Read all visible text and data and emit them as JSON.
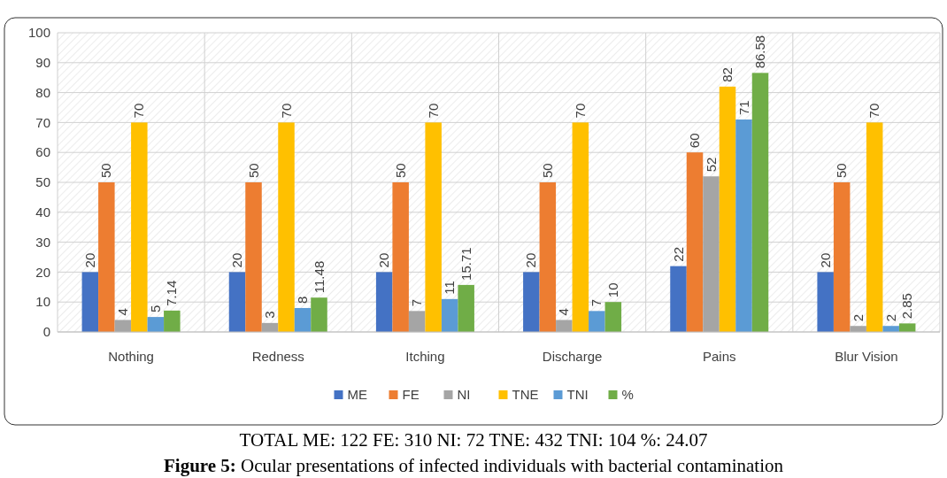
{
  "chart_data": {
    "type": "bar",
    "title": "Figure 5: Ocular presentations of infected individuals with bacterial contamination",
    "annotations": [
      "TOTAL ME: 122 FE: 310 NI: 72 TNE: 432 TNI: 104 %: 24.07"
    ],
    "categories": [
      "Nothing",
      "Redness",
      "Itching",
      "Discharge",
      "Pains",
      "Blur Vision"
    ],
    "series": [
      {
        "name": "ME",
        "color": "#4472c4",
        "values": [
          20,
          20,
          20,
          20,
          22,
          20
        ]
      },
      {
        "name": "FE",
        "color": "#ed7d31",
        "values": [
          50,
          50,
          50,
          50,
          60,
          50
        ]
      },
      {
        "name": "NI",
        "color": "#a5a5a5",
        "values": [
          4,
          3,
          7,
          4,
          52,
          2
        ]
      },
      {
        "name": "TNE",
        "color": "#ffc000",
        "values": [
          70,
          70,
          70,
          70,
          82,
          70
        ]
      },
      {
        "name": "TNI",
        "color": "#5b9bd5",
        "values": [
          5,
          8,
          11,
          7,
          71,
          2
        ]
      },
      {
        "name": "%",
        "color": "#70ad47",
        "values": [
          7.14,
          11.48,
          15.71,
          10,
          86.58,
          2.85
        ]
      }
    ],
    "ylim": [
      0,
      100
    ],
    "yticks": [
      0,
      10,
      20,
      30,
      40,
      50,
      60,
      70,
      80,
      90,
      100
    ],
    "grid": true,
    "legend": "bottom",
    "data_labels": true
  }
}
